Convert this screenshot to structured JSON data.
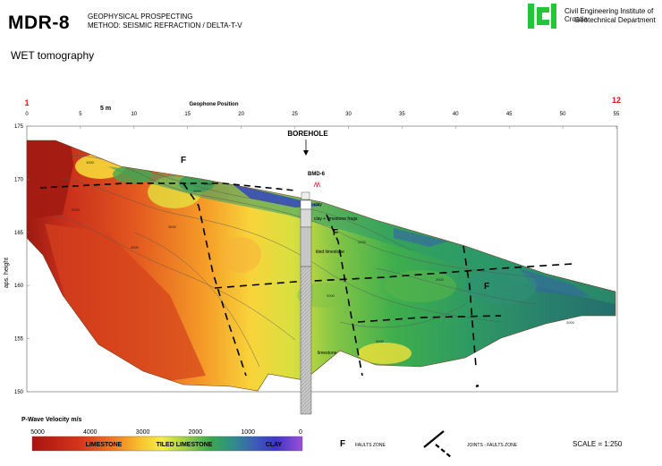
{
  "header": {
    "code": "MDR-8",
    "subtitle_1": "GEOPHYSICAL PROSPECTING",
    "subtitle_2": "METHOD: SEISMIC REFRACTION / DELTA-T-V",
    "method_title": "WET tomography",
    "institute_1": "Civil Engineering Institute of Croatia",
    "institute_2": "Geotechnical Department"
  },
  "profile": {
    "geophone_start": "1",
    "geophone_end": "12",
    "x_axis_title": "Geophone Position",
    "spacing_label": "5 m",
    "x_ticks": [
      "0",
      "5",
      "10",
      "15",
      "20",
      "25",
      "30",
      "35",
      "40",
      "45",
      "50",
      "55"
    ],
    "y_axis_title": "aps. height",
    "y_ticks": [
      "150",
      "155",
      "160",
      "165",
      "170",
      "175"
    ],
    "accent_color": "#e0140f"
  },
  "borehole": {
    "title": "BOREHOLE",
    "name": "BMD-6",
    "layers": [
      "clay",
      "clay + limestone frags",
      "tiled limestone",
      "limestone"
    ]
  },
  "fault_labels": [
    "F",
    "F",
    "F"
  ],
  "contour_labels": [
    "1000",
    "2000",
    "3000",
    "4000",
    "2000",
    "3000",
    "2000",
    "3000",
    "3000",
    "2000",
    "2000"
  ],
  "legend": {
    "title": "P-Wave Velocity m/s",
    "ticks": [
      "5000",
      "4000",
      "3000",
      "2000",
      "1000",
      "0"
    ],
    "zones": [
      "LIMESTONE",
      "TILED LIMESTONE",
      "CLAY"
    ]
  },
  "key": {
    "fault_symbol": "F",
    "faults_zone": "FAULTS ZONE",
    "joints_faults_zone": "JOINTS - FAULTS ZONE",
    "scale": "SCALE = 1:250"
  }
}
